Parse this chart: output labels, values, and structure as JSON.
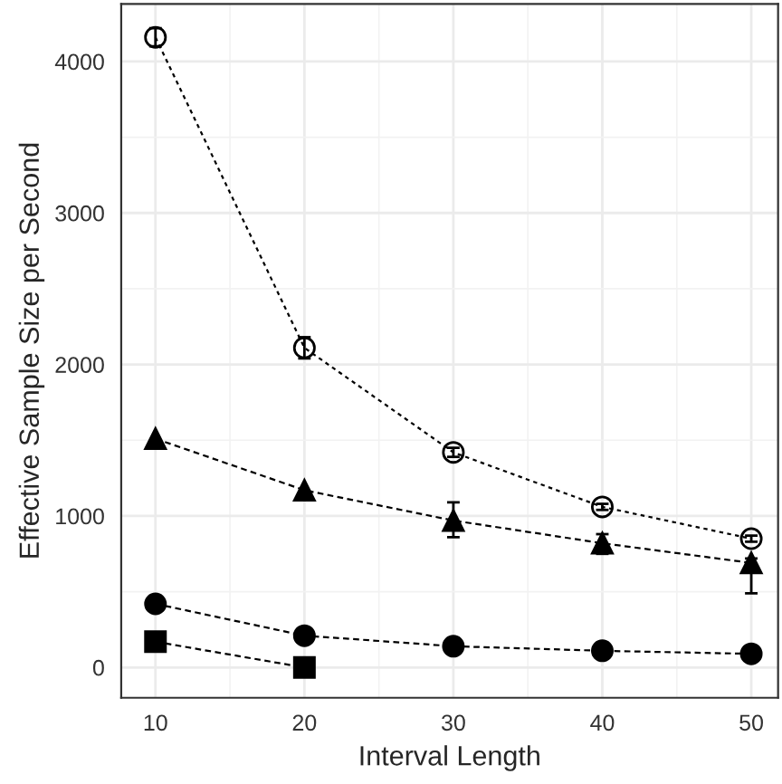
{
  "chart_data": {
    "type": "line",
    "xlabel": "Interval Length",
    "ylabel": "Effective Sample Size per Second",
    "x": [
      10,
      20,
      30,
      40,
      50
    ],
    "series": [
      {
        "color": "#000000",
        "marker": "circle_open",
        "line_style": "dotted",
        "values": [
          4160,
          2110,
          1420,
          1060,
          850
        ],
        "errors": [
          60,
          70,
          30,
          20,
          20
        ]
      },
      {
        "color": "#000000",
        "marker": "triangle",
        "line_style": "dashed",
        "values": [
          1510,
          1170,
          970,
          820,
          690
        ],
        "errors": [
          null,
          null,
          [
            860,
            1090
          ],
          [
            750,
            880
          ],
          [
            490,
            720
          ]
        ]
      },
      {
        "color": "#000000",
        "marker": "circle",
        "line_style": "dashed",
        "values": [
          420,
          210,
          140,
          110,
          90
        ]
      },
      {
        "color": "#000000",
        "marker": "square",
        "line_style": "dashed",
        "values": [
          170,
          0,
          null,
          null,
          null
        ]
      }
    ],
    "xlim": [
      7.7,
      51.8
    ],
    "ylim": [
      -200,
      4380
    ],
    "xticks": [
      10,
      20,
      30,
      40,
      50
    ],
    "yticks": [
      0,
      1000,
      2000,
      3000,
      4000
    ],
    "grid": true
  }
}
